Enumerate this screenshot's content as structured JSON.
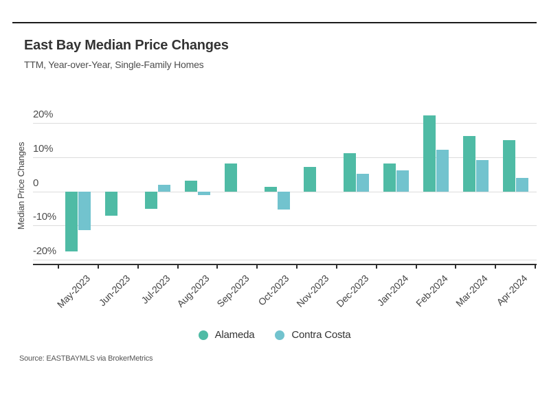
{
  "header": {
    "title": "East Bay Median Price Changes",
    "subtitle": "TTM, Year-over-Year, Single-Family Homes"
  },
  "footer": {
    "source": "Source:  EASTBAYMLS via BrokerMetrics"
  },
  "legend": {
    "items": [
      {
        "label": "Alameda",
        "color": "#4fbba5"
      },
      {
        "label": "Contra Costa",
        "color": "#72c3ce"
      }
    ]
  },
  "colors": {
    "alameda": "#4fbba5",
    "contra_costa": "#72c3ce",
    "gridline": "#dcdcdc",
    "axis": "#2e2e2e",
    "title_text": "#333333",
    "muted_text": "#4d4d4d"
  },
  "chart_data": {
    "type": "bar",
    "title": "East Bay Median Price Changes",
    "subtitle": "TTM, Year-over-Year, Single-Family Homes",
    "xlabel": "",
    "ylabel": "Median Price Changes",
    "categories": [
      "May-2023",
      "Jun-2023",
      "Jul-2023",
      "Aug-2023",
      "Sep-2023",
      "Oct-2023",
      "Nov-2023",
      "Dec-2023",
      "Jan-2024",
      "Feb-2024",
      "Mar-2024",
      "Apr-2024"
    ],
    "series": [
      {
        "name": "Alameda",
        "color": "#4fbba5",
        "values": [
          -17.5,
          -7.2,
          -5.1,
          3.1,
          8.2,
          1.3,
          7.2,
          11.2,
          8.2,
          22.3,
          16.2,
          15.1
        ]
      },
      {
        "name": "Contra Costa",
        "color": "#72c3ce",
        "values": [
          -11.4,
          null,
          1.9,
          -1.1,
          null,
          -5.3,
          null,
          5.2,
          6.1,
          12.3,
          9.2,
          4.0
        ]
      }
    ],
    "y_ticks": [
      {
        "value": 20,
        "label": "20%"
      },
      {
        "value": 10,
        "label": "10%"
      },
      {
        "value": 0,
        "label": "0"
      },
      {
        "value": -10,
        "label": "-10%"
      },
      {
        "value": -20,
        "label": "-20%"
      }
    ],
    "ylim": [
      -21.2,
      24.9
    ],
    "unit": "%",
    "grid": true,
    "legend_position": "bottom",
    "source": "Source:  EASTBAYMLS via BrokerMetrics"
  }
}
